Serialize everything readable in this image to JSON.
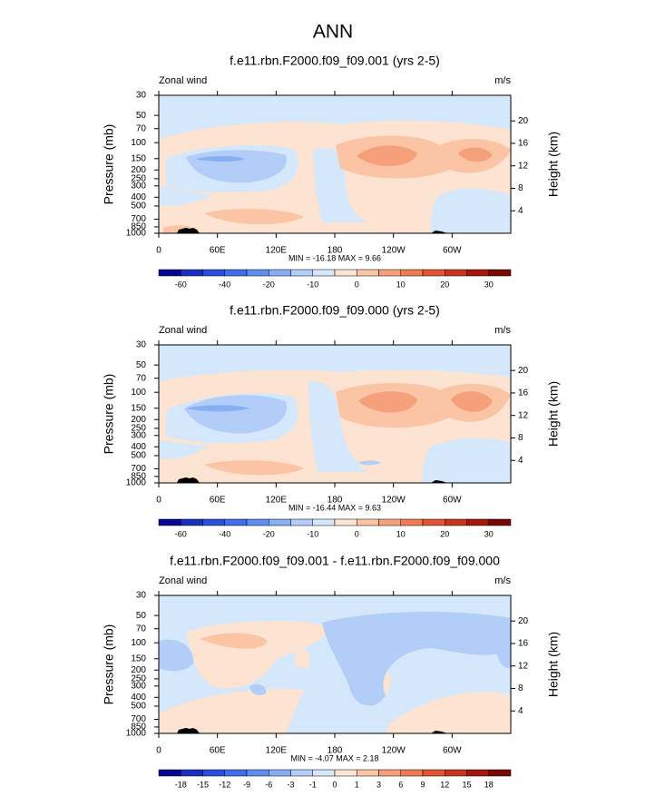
{
  "title": "ANN",
  "chart_data": [
    {
      "type": "contour",
      "title": "f.e11.rbn.F2000.f09_f09.001 (yrs 2-5)",
      "left_label": "Zonal wind",
      "right_label": "m/s",
      "stats": "MIN = -16.18  MAX =  9.66",
      "ylabel": "Pressure (mb)",
      "y2label": "Height (km)",
      "xlim": [
        0,
        360
      ],
      "xticks": [
        0,
        {
          "value": 60,
          "label": "60E"
        },
        {
          "value": 120,
          "label": "120E"
        },
        180,
        {
          "value": 240,
          "label": "120W"
        },
        {
          "value": 300,
          "label": "60W"
        }
      ],
      "ylim": [
        1000,
        30
      ],
      "log_scale": true,
      "yticks": [
        30,
        50,
        70,
        100,
        150,
        200,
        250,
        300,
        400,
        500,
        700,
        850,
        1000
      ],
      "y2lim": [
        0,
        24.55
      ],
      "y2ticks": [
        4,
        8,
        12,
        16,
        20
      ],
      "colorbar": {
        "colors": [
          "#07078f",
          "#1a2fbd",
          "#2b4fdc",
          "#3f6ee8",
          "#5f8ef0",
          "#88aef5",
          "#b1cdf8",
          "#d5e7fb",
          "#fde3d1",
          "#fbc4a5",
          "#f6a07b",
          "#ef7b54",
          "#e05634",
          "#c7361c",
          "#a2190c",
          "#780806"
        ],
        "levels": [
          -60,
          null,
          -40,
          null,
          -20,
          null,
          -10,
          null,
          0,
          null,
          10,
          null,
          20,
          null,
          30
        ]
      }
    },
    {
      "type": "contour",
      "title": "f.e11.rbn.F2000.f09_f09.000 (yrs 2-5)",
      "left_label": "Zonal wind",
      "right_label": "m/s",
      "stats": "MIN = -16.44  MAX =  9.63",
      "ylabel": "Pressure (mb)",
      "y2label": "Height (km)",
      "xlim": [
        0,
        360
      ],
      "xticks": [
        0,
        {
          "value": 60,
          "label": "60E"
        },
        {
          "value": 120,
          "label": "120E"
        },
        180,
        {
          "value": 240,
          "label": "120W"
        },
        {
          "value": 300,
          "label": "60W"
        }
      ],
      "ylim": [
        1000,
        30
      ],
      "log_scale": true,
      "yticks": [
        30,
        50,
        70,
        100,
        150,
        200,
        250,
        300,
        400,
        500,
        700,
        850,
        1000
      ],
      "y2lim": [
        0,
        24.55
      ],
      "y2ticks": [
        4,
        8,
        12,
        16,
        20
      ],
      "colorbar": {
        "colors": [
          "#07078f",
          "#1a2fbd",
          "#2b4fdc",
          "#3f6ee8",
          "#5f8ef0",
          "#88aef5",
          "#b1cdf8",
          "#d5e7fb",
          "#fde3d1",
          "#fbc4a5",
          "#f6a07b",
          "#ef7b54",
          "#e05634",
          "#c7361c",
          "#a2190c",
          "#780806"
        ],
        "levels": [
          -60,
          null,
          -40,
          null,
          -20,
          null,
          -10,
          null,
          0,
          null,
          10,
          null,
          20,
          null,
          30
        ]
      }
    },
    {
      "type": "contour",
      "title": "f.e11.rbn.F2000.f09_f09.001 - f.e11.rbn.F2000.f09_f09.000",
      "left_label": "Zonal wind",
      "right_label": "m/s",
      "stats": "MIN = -4.07  MAX =  2.18",
      "ylabel": "Pressure (mb)",
      "y2label": "Height (km)",
      "xlim": [
        0,
        360
      ],
      "xticks": [
        0,
        {
          "value": 60,
          "label": "60E"
        },
        {
          "value": 120,
          "label": "120E"
        },
        180,
        {
          "value": 240,
          "label": "120W"
        },
        {
          "value": 300,
          "label": "60W"
        }
      ],
      "ylim": [
        1000,
        30
      ],
      "log_scale": true,
      "yticks": [
        30,
        50,
        70,
        100,
        150,
        200,
        250,
        300,
        400,
        500,
        700,
        850,
        1000
      ],
      "y2lim": [
        0,
        24.55
      ],
      "y2ticks": [
        4,
        8,
        12,
        16,
        20
      ],
      "colorbar": {
        "colors": [
          "#07078f",
          "#1a2fbd",
          "#2b4fdc",
          "#3f6ee8",
          "#5f8ef0",
          "#88aef5",
          "#b1cdf8",
          "#d5e7fb",
          "#fde3d1",
          "#fbc4a5",
          "#f6a07b",
          "#ef7b54",
          "#e05634",
          "#c7361c",
          "#a2190c",
          "#780806"
        ],
        "levels": [
          -18,
          -15,
          -12,
          -9,
          -6,
          -3,
          -1,
          0,
          1,
          3,
          6,
          9,
          12,
          15,
          18
        ]
      }
    }
  ]
}
